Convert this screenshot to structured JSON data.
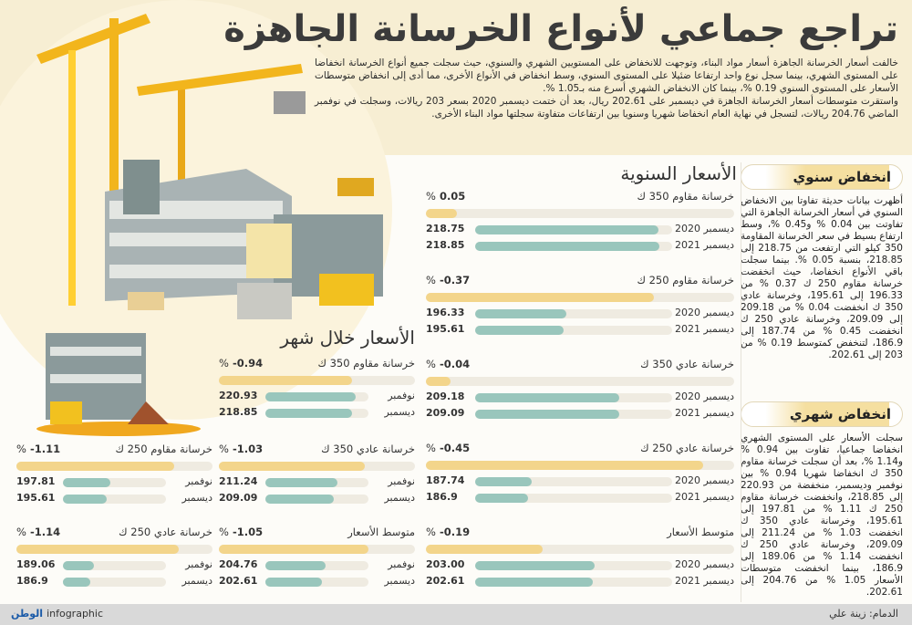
{
  "title": "تراجع جماعي لأنواع الخرسانة الجاهزة",
  "intro": [
    "خالفت أسعار الخرسانة الجاهزة أسعار مواد البناء، وتوجهت للانخفاض على المستويين الشهري والسنوي، حيث سجلت جميع أنواع الخرسانة انخفاضا على المستوى الشهري، بينما سجل نوع واحد ارتفاعا ضئيلا على المستوى السنوي، وسط انخفاض في الأنواع الأخرى، مما أدى إلى انخفاض متوسطات الأسعار على المستوى السنوي 0.19 %، بينما كان الانخفاض الشهري أسرع منه بـ1.05 %.",
    "واستقرت متوسطات أسعار الخرسانة الجاهزة في ديسمبر على 202.61 ريال، بعد أن ختمت ديسمبر 2020 بسعر 203 ريالات، وسجلت في نوفمبر الماضي 204.76 ريالات، لتسجل في نهاية العام انخفاضا شهريا وسنويا بين ارتفاعات متفاوتة سجلتها مواد البناء الأخرى."
  ],
  "sidebar": {
    "annual_title": "انخفاض سنوي",
    "annual_text": "أظهرت بيانات حديثة تفاوتا بين الانخفاض السنوي في أسعار الخرسانة الجاهزة التي تفاوتت بين 0.04 % و0.45 %، وسط ارتفاع بسيط في سعر الخرسانة المقاومة 350 كيلو التي ارتفعت من 218.75 إلى 218.85، بنسبة 0.05 %. بينما سجلت باقي الأنواع انخفاضا، حيث انخفضت خرسانة مقاوم 250 ك 0.37 % من 196.33 إلى 195.61، وخرسانة عادي 350 ك انخفضت 0.04 % من 209.18 إلى 209.09، وخرسانة عادي 250 ك انخفضت 0.45 % من 187.74 إلى 186.9، لتنخفض كمتوسط 0.19 % من 203 إلى 202.61.",
    "monthly_title": "انخفاض شهري",
    "monthly_text": "سجلت الأسعار على المستوى الشهري انخفاضا جماعيا، تفاوت بين 0.94 % و1.14 %، بعد أن سجلت خرسانة مقاوم 350 ك انخفاضا شهريا 0.94 % بين نوفمبر وديسمبر، منخفضة من 220.93 إلى 218.85، وانخفضت خرسانة مقاوم 250 ك 1.11 % من 197.81 إلى 195.61، وخرسانة عادي 350 ك انخفضت 1.03 % من 211.24 إلى 209.09، وخرسانة عادي 250 ك انخفضت 1.14 % من 189.06 إلى 186.9، بينما انخفضت متوسطات الأسعار 1.05 % من 204.76 إلى 202.61."
  },
  "footer": {
    "credit": "الدمام: زينة علي",
    "brand_logo": "الوطن",
    "brand": "infographic"
  },
  "colors": {
    "change_bar": "#f3d58b",
    "price_bar": "#99c6bc",
    "track": "#efebe1",
    "top_background": "#f7eed3"
  },
  "chart_data": [
    {
      "type": "bar",
      "title": "الأسعار السنوية",
      "unit_pct": "%",
      "groups": [
        {
          "label": "خرسانة مقاوم 350 ك",
          "change_pct": "0.05",
          "rows": [
            {
              "label": "ديسمبر 2020",
              "value": 218.75,
              "text": "218.75"
            },
            {
              "label": "ديسمبر 2021",
              "value": 218.85,
              "text": "218.85"
            }
          ]
        },
        {
          "label": "خرسانة مقاوم 250 ك",
          "change_pct": "-0.37",
          "rows": [
            {
              "label": "ديسمبر 2020",
              "value": 196.33,
              "text": "196.33"
            },
            {
              "label": "ديسمبر 2021",
              "value": 195.61,
              "text": "195.61"
            }
          ]
        },
        {
          "label": "خرسانة عادي 350 ك",
          "change_pct": "-0.04",
          "rows": [
            {
              "label": "ديسمبر 2020",
              "value": 209.18,
              "text": "209.18"
            },
            {
              "label": "ديسمبر 2021",
              "value": 209.09,
              "text": "209.09"
            }
          ]
        },
        {
          "label": "خرسانة عادي 250 ك",
          "change_pct": "-0.45",
          "rows": [
            {
              "label": "ديسمبر 2020",
              "value": 187.74,
              "text": "187.74"
            },
            {
              "label": "ديسمبر 2021",
              "value": 186.9,
              "text": "186.9"
            }
          ]
        },
        {
          "label": "متوسط الأسعار",
          "change_pct": "-0.19",
          "rows": [
            {
              "label": "ديسمبر 2020",
              "value": 203.0,
              "text": "203.00"
            },
            {
              "label": "ديسمبر 2021",
              "value": 202.61,
              "text": "202.61"
            }
          ]
        }
      ]
    },
    {
      "type": "bar",
      "title": "الأسعار خلال شهر",
      "unit_pct": "%",
      "groups": [
        {
          "label": "خرسانة مقاوم 350 ك",
          "change_pct": "-0.94",
          "rows": [
            {
              "label": "نوفمبر",
              "value": 220.93,
              "text": "220.93"
            },
            {
              "label": "ديسمبر",
              "value": 218.85,
              "text": "218.85"
            }
          ]
        },
        {
          "label": "خرسانة عادي 350 ك",
          "change_pct": "-1.03",
          "rows": [
            {
              "label": "نوفمبر",
              "value": 211.24,
              "text": "211.24"
            },
            {
              "label": "ديسمبر",
              "value": 209.09,
              "text": "209.09"
            }
          ]
        },
        {
          "label": "متوسط الأسعار",
          "change_pct": "-1.05",
          "rows": [
            {
              "label": "نوفمبر",
              "value": 204.76,
              "text": "204.76"
            },
            {
              "label": "ديسمبر",
              "value": 202.61,
              "text": "202.61"
            }
          ]
        },
        {
          "label": "خرسانة مقاوم 250 ك",
          "change_pct": "-1.11",
          "rows": [
            {
              "label": "نوفمبر",
              "value": 197.81,
              "text": "197.81"
            },
            {
              "label": "ديسمبر",
              "value": 195.61,
              "text": "195.61"
            }
          ]
        },
        {
          "label": "خرسانة عادي 250 ك",
          "change_pct": "-1.14",
          "rows": [
            {
              "label": "نوفمبر",
              "value": 189.06,
              "text": "189.06"
            },
            {
              "label": "ديسمبر",
              "value": 186.9,
              "text": "186.9"
            }
          ]
        }
      ]
    }
  ]
}
